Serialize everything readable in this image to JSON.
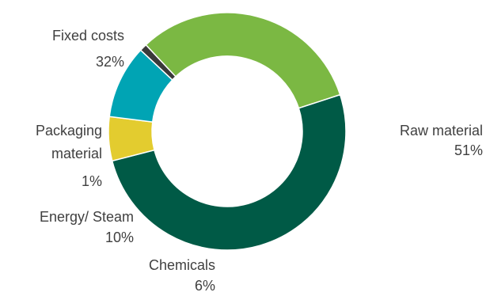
{
  "chart_data": {
    "type": "pie",
    "variant": "donut",
    "title": "",
    "legend": "none",
    "slices": [
      {
        "name": "Raw material",
        "value": 51,
        "label": "51%",
        "color": "#005A46"
      },
      {
        "name": "Chemicals",
        "value": 6,
        "label": "6%",
        "color": "#E3CC2F"
      },
      {
        "name": "Energy/ Steam",
        "value": 10,
        "label": "10%",
        "color": "#00A4B4"
      },
      {
        "name": "Packaging material",
        "value": 1,
        "label": "1%",
        "color": "#3A3A3A"
      },
      {
        "name": "Fixed costs",
        "value": 32,
        "label": "32%",
        "color": "#7BB843"
      }
    ]
  }
}
